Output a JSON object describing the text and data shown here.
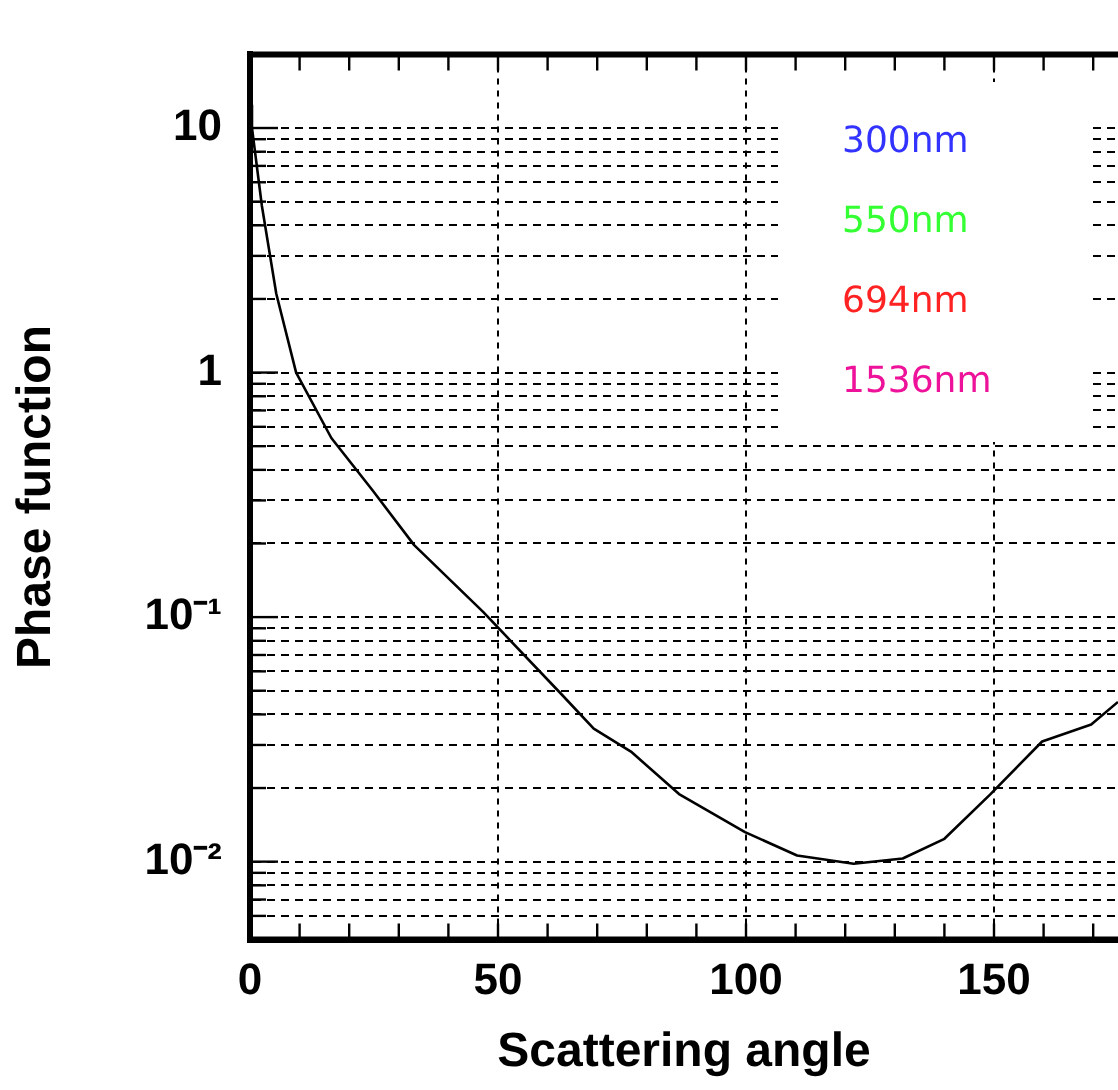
{
  "chart_data": {
    "type": "line",
    "xlabel": "Scattering angle",
    "ylabel": "Phase function",
    "x": [
      0,
      0.4,
      2.4,
      5.3,
      9.3,
      16.4,
      24.7,
      33.1,
      47,
      62.7,
      69.3,
      76.8,
      86.5,
      99.8,
      110.3,
      121.7,
      131.6,
      140,
      149.2,
      159.7,
      169.6,
      175
    ],
    "series": [
      {
        "color": "#000000",
        "values": [
          12.4,
          10,
          4.8,
          2.1,
          1,
          0.54,
          0.33,
          0.197,
          0.105,
          0.0486,
          0.035,
          0.0282,
          0.0189,
          0.0132,
          0.0106,
          0.0098,
          0.0103,
          0.0124,
          0.0188,
          0.031,
          0.0364,
          0.045
        ]
      },
      {
        "name": "300nm",
        "color": "#3333ff",
        "values": [
          null,
          null,
          null,
          null,
          null,
          null,
          null,
          null,
          null,
          null,
          null,
          null,
          null,
          null,
          null,
          null,
          null,
          null,
          null,
          null,
          null,
          null
        ]
      },
      {
        "name": "550nm",
        "color": "#33ff33",
        "values": [
          null,
          null,
          null,
          null,
          null,
          null,
          null,
          null,
          null,
          null,
          null,
          null,
          null,
          null,
          null,
          null,
          null,
          null,
          null,
          null,
          null,
          null
        ]
      },
      {
        "name": "694nm",
        "color": "#ff2222",
        "values": [
          null,
          null,
          null,
          null,
          null,
          null,
          null,
          null,
          null,
          null,
          null,
          null,
          null,
          null,
          null,
          null,
          null,
          null,
          null,
          null,
          null,
          null
        ]
      },
      {
        "name": "1536nm",
        "color": "#ee1199",
        "values": [
          null,
          null,
          null,
          null,
          null,
          null,
          null,
          null,
          null,
          null,
          null,
          null,
          null,
          null,
          null,
          null,
          null,
          null,
          null,
          null,
          null,
          null
        ]
      }
    ],
    "log": "y",
    "xlim": [
      0,
      175
    ],
    "ylim": [
      0.0048,
      20
    ],
    "xticks": [
      0,
      {
        "value": 10,
        "label": null
      },
      {
        "value": 20,
        "label": null
      },
      {
        "value": 30,
        "label": null
      },
      {
        "value": 40,
        "label": null
      },
      50,
      {
        "value": 60,
        "label": null
      },
      {
        "value": 70,
        "label": null
      },
      {
        "value": 80,
        "label": null
      },
      {
        "value": 90,
        "label": null
      },
      100,
      {
        "value": 110,
        "label": null
      },
      {
        "value": 120,
        "label": null
      },
      {
        "value": 130,
        "label": null
      },
      {
        "value": 140,
        "label": null
      },
      150,
      {
        "value": 160,
        "label": null
      },
      {
        "value": 170,
        "label": null
      }
    ],
    "yticks": [
      {
        "value": 0.006,
        "label": null
      },
      {
        "value": 0.007,
        "label": null
      },
      {
        "value": 0.008,
        "label": null
      },
      {
        "value": 0.009,
        "label": null
      },
      {
        "value": 0.01,
        "label": "10⁻²"
      },
      {
        "value": 0.02,
        "label": null
      },
      {
        "value": 0.03,
        "label": null
      },
      {
        "value": 0.04,
        "label": null
      },
      {
        "value": 0.05,
        "label": null
      },
      {
        "value": 0.06,
        "label": null
      },
      {
        "value": 0.07,
        "label": null
      },
      {
        "value": 0.08,
        "label": null
      },
      {
        "value": 0.09,
        "label": null
      },
      {
        "value": 0.1,
        "label": "10⁻¹"
      },
      {
        "value": 0.2,
        "label": null
      },
      {
        "value": 0.3,
        "label": null
      },
      {
        "value": 0.4,
        "label": null
      },
      {
        "value": 0.5,
        "label": null
      },
      {
        "value": 0.6,
        "label": null
      },
      {
        "value": 0.7,
        "label": null
      },
      {
        "value": 0.8,
        "label": null
      },
      {
        "value": 0.9,
        "label": null
      },
      1,
      {
        "value": 2,
        "label": null
      },
      {
        "value": 3,
        "label": null
      },
      {
        "value": 4,
        "label": null
      },
      {
        "value": 5,
        "label": null
      },
      {
        "value": 6,
        "label": null
      },
      {
        "value": 7,
        "label": null
      },
      {
        "value": 8,
        "label": null
      },
      {
        "value": 9,
        "label": null
      },
      10
    ],
    "grid": true,
    "marker": "none",
    "line_style": "solid"
  }
}
